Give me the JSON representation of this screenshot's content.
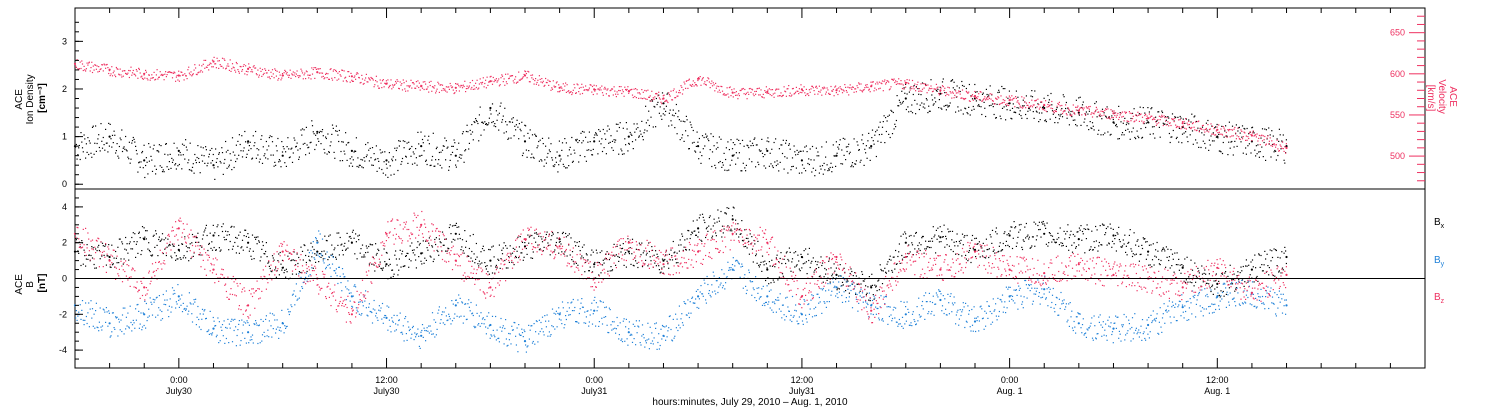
{
  "chart_data": [
    {
      "type": "scatter",
      "panel": "top",
      "left_axis": {
        "label_lines": [
          "ACE",
          "Ion Density"
        ],
        "unit": "[cm⁻³]",
        "ylim": [
          -0.1,
          3.7
        ],
        "ticks": [
          0,
          1,
          2,
          3
        ]
      },
      "right_axis": {
        "label_lines": [
          "ACE",
          "Velocity"
        ],
        "unit": "[km/s]",
        "ylim": [
          460,
          680
        ],
        "ticks": [
          500,
          550,
          600,
          650
        ],
        "color": "#ee3060"
      },
      "series": [
        {
          "axis": "left",
          "color": "#000000",
          "x": [
            0,
            2,
            4,
            6,
            8,
            10,
            12,
            14,
            16,
            18,
            20,
            22,
            24,
            26,
            28,
            30,
            32,
            34,
            36,
            38,
            40,
            42,
            44,
            46,
            48,
            50,
            52,
            54,
            56,
            58,
            60,
            62,
            64,
            66,
            68,
            70
          ],
          "values": [
            0.8,
            1.0,
            0.5,
            0.7,
            0.4,
            0.9,
            0.6,
            1.1,
            0.7,
            0.5,
            0.8,
            0.6,
            1.6,
            0.9,
            0.6,
            0.9,
            1.0,
            1.7,
            0.8,
            0.6,
            0.7,
            0.5,
            0.6,
            0.8,
            1.8,
            1.9,
            1.8,
            1.7,
            1.6,
            1.5,
            1.3,
            1.3,
            1.2,
            1.0,
            0.9,
            0.8
          ]
        },
        {
          "axis": "right",
          "color": "#ee3060",
          "x": [
            0,
            2,
            4,
            6,
            8,
            10,
            12,
            14,
            16,
            18,
            20,
            22,
            24,
            26,
            28,
            30,
            32,
            34,
            36,
            38,
            40,
            42,
            44,
            46,
            48,
            50,
            52,
            54,
            56,
            58,
            60,
            62,
            64,
            66,
            68,
            70
          ],
          "values": [
            612,
            605,
            600,
            598,
            615,
            606,
            598,
            602,
            597,
            588,
            585,
            583,
            591,
            598,
            583,
            581,
            579,
            570,
            594,
            577,
            578,
            581,
            580,
            585,
            589,
            580,
            573,
            568,
            562,
            555,
            552,
            546,
            540,
            532,
            525,
            510
          ]
        }
      ]
    },
    {
      "type": "scatter",
      "panel": "bottom",
      "left_axis": {
        "label_lines": [
          "ACE",
          "B"
        ],
        "unit": "[nT]",
        "ylim": [
          -5,
          5
        ],
        "ticks": [
          -4,
          -2,
          0,
          2,
          4
        ]
      },
      "legend": {
        "placement": "right",
        "entries": [
          {
            "label": "B",
            "sub": "x",
            "color": "#000000"
          },
          {
            "label": "B",
            "sub": "y",
            "color": "#1e80d8"
          },
          {
            "label": "B",
            "sub": "z",
            "color": "#ee3060"
          }
        ]
      },
      "series": [
        {
          "name": "Bx",
          "color": "#000000",
          "x": [
            0,
            2,
            4,
            6,
            8,
            10,
            12,
            14,
            16,
            18,
            20,
            22,
            24,
            26,
            28,
            30,
            32,
            34,
            36,
            38,
            40,
            42,
            44,
            46,
            48,
            50,
            52,
            54,
            56,
            58,
            60,
            62,
            64,
            66,
            68,
            70
          ],
          "values": [
            1.5,
            1.2,
            2.2,
            1.6,
            2.4,
            2.0,
            0.6,
            1.5,
            2.0,
            0.8,
            1.4,
            2.5,
            1.0,
            1.8,
            2.2,
            0.8,
            1.5,
            1.0,
            2.8,
            3.3,
            0.5,
            1.2,
            0.2,
            -0.5,
            2.0,
            2.3,
            1.6,
            2.4,
            2.5,
            2.2,
            2.4,
            1.5,
            0.6,
            -0.3,
            0.5,
            1.2
          ]
        },
        {
          "name": "By",
          "color": "#1e80d8",
          "x": [
            0,
            2,
            4,
            6,
            8,
            10,
            12,
            14,
            16,
            18,
            20,
            22,
            24,
            26,
            28,
            30,
            32,
            34,
            36,
            38,
            40,
            42,
            44,
            46,
            48,
            50,
            52,
            54,
            56,
            58,
            60,
            62,
            64,
            66,
            68,
            70
          ],
          "values": [
            -1.5,
            -2.5,
            -2.0,
            -1.0,
            -2.8,
            -3.0,
            -2.5,
            2.0,
            -1.0,
            -2.2,
            -3.2,
            -1.5,
            -2.6,
            -3.5,
            -2.0,
            -1.8,
            -3.0,
            -3.2,
            -1.0,
            0.5,
            -1.0,
            -2.0,
            -0.5,
            -1.5,
            -2.0,
            -1.2,
            -2.4,
            -1.0,
            -0.6,
            -2.5,
            -2.8,
            -2.6,
            -1.6,
            -1.0,
            -0.8,
            -1.5
          ]
        },
        {
          "name": "Bz",
          "color": "#ee3060",
          "x": [
            0,
            2,
            4,
            6,
            8,
            10,
            12,
            14,
            16,
            18,
            20,
            22,
            24,
            26,
            28,
            30,
            32,
            34,
            36,
            38,
            40,
            42,
            44,
            46,
            48,
            50,
            52,
            54,
            56,
            58,
            60,
            62,
            64,
            66,
            68,
            70
          ],
          "values": [
            2.5,
            1.0,
            -0.5,
            2.8,
            0.5,
            -1.5,
            1.5,
            0.0,
            -2.0,
            2.5,
            3.0,
            1.0,
            -0.5,
            2.2,
            1.8,
            0.0,
            2.0,
            0.8,
            1.5,
            2.5,
            2.0,
            -1.0,
            1.2,
            -1.8,
            1.2,
            0.5,
            1.5,
            0.5,
            0.3,
            0.8,
            0.2,
            0.0,
            -0.5,
            0.6,
            -0.8,
            0.2
          ]
        }
      ]
    }
  ],
  "x_axis": {
    "title": "hours:minutes, July 29, 2010 – Aug. 1, 2010",
    "ticks": [
      {
        "x": 6,
        "time": "0:00",
        "date": "July30"
      },
      {
        "x": 18,
        "time": "12:00",
        "date": "July30"
      },
      {
        "x": 30,
        "time": "0:00",
        "date": "July31"
      },
      {
        "x": 42,
        "time": "12:00",
        "date": "July31"
      },
      {
        "x": 54,
        "time": "0:00",
        "date": "Aug. 1"
      },
      {
        "x": 66,
        "time": "12:00",
        "date": "Aug. 1"
      }
    ],
    "xlim": [
      0,
      78
    ]
  }
}
